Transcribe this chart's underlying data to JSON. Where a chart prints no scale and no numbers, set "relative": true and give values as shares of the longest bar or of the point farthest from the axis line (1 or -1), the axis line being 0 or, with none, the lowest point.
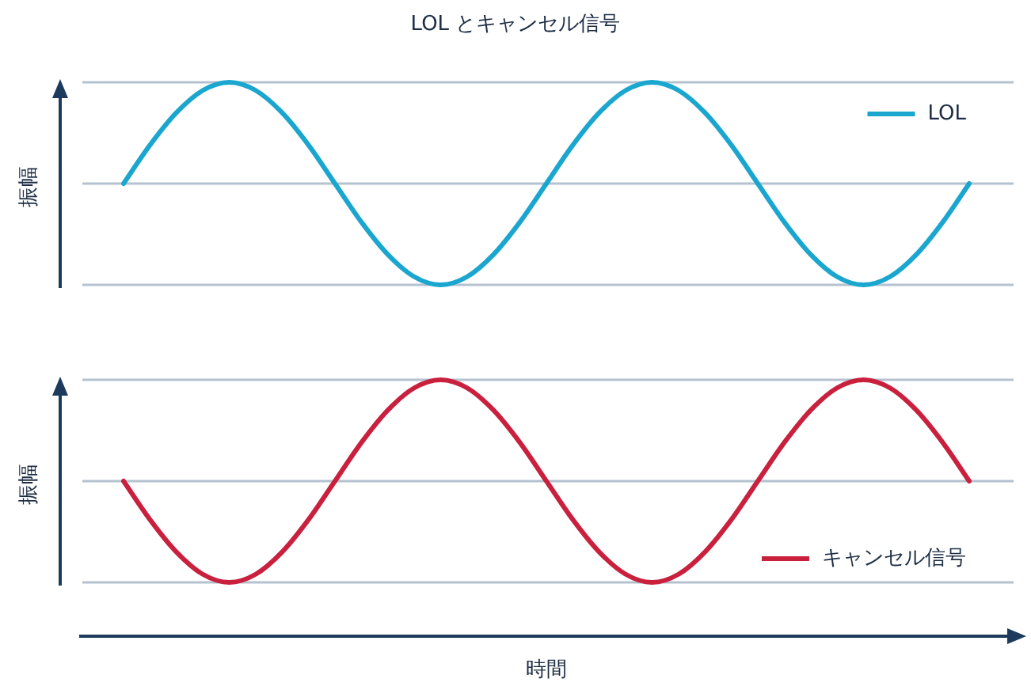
{
  "chart_data": [
    {
      "type": "line",
      "title": "LOL とキャンセル信号",
      "ylabel": "振幅",
      "relative": true,
      "grid": "y",
      "legend": "top right",
      "marker": "none",
      "line_style": "solid",
      "ref_lines": [
        {
          "axis": "y",
          "value": 0.5,
          "color": "#b4c2d0"
        }
      ],
      "categories": [
        null,
        null,
        null,
        null,
        null,
        null,
        null,
        null,
        null,
        null,
        null,
        null,
        null,
        null,
        null,
        null,
        null,
        null,
        null,
        null,
        null,
        null,
        null,
        null,
        null,
        null,
        null,
        null,
        null,
        null,
        null,
        null,
        null
      ],
      "series": [
        {
          "name": "LOL",
          "color": "#1aa6cf",
          "values": [
            0.5,
            0.69,
            0.85,
            0.96,
            1,
            0.96,
            0.85,
            0.69,
            0.5,
            0.31,
            0.15,
            0.04,
            0,
            0.04,
            0.15,
            0.31,
            0.5,
            0.69,
            0.85,
            0.96,
            1,
            0.96,
            0.85,
            0.69,
            0.5,
            0.31,
            0.15,
            0.04,
            0,
            0.04,
            0.15,
            0.31,
            0.5
          ]
        }
      ]
    },
    {
      "type": "line",
      "ylabel": "振幅",
      "xlabel": "時間",
      "relative": true,
      "grid": "y",
      "legend": "bottom right",
      "marker": "none",
      "line_style": "solid",
      "ref_lines": [
        {
          "axis": "y",
          "value": 0.5,
          "color": "#b4c2d0"
        }
      ],
      "categories": [
        null,
        null,
        null,
        null,
        null,
        null,
        null,
        null,
        null,
        null,
        null,
        null,
        null,
        null,
        null,
        null,
        null,
        null,
        null,
        null,
        null,
        null,
        null,
        null,
        null,
        null,
        null,
        null,
        null,
        null,
        null,
        null,
        null
      ],
      "series": [
        {
          "name": "キャンセル信号",
          "color": "#c9203e",
          "values": [
            0.5,
            0.31,
            0.15,
            0.04,
            0,
            0.04,
            0.15,
            0.31,
            0.5,
            0.69,
            0.85,
            0.96,
            1,
            0.96,
            0.85,
            0.69,
            0.5,
            0.31,
            0.15,
            0.04,
            0,
            0.04,
            0.15,
            0.31,
            0.5,
            0.69,
            0.85,
            0.96,
            1,
            0.96,
            0.85,
            0.69,
            0.5
          ]
        }
      ]
    }
  ]
}
